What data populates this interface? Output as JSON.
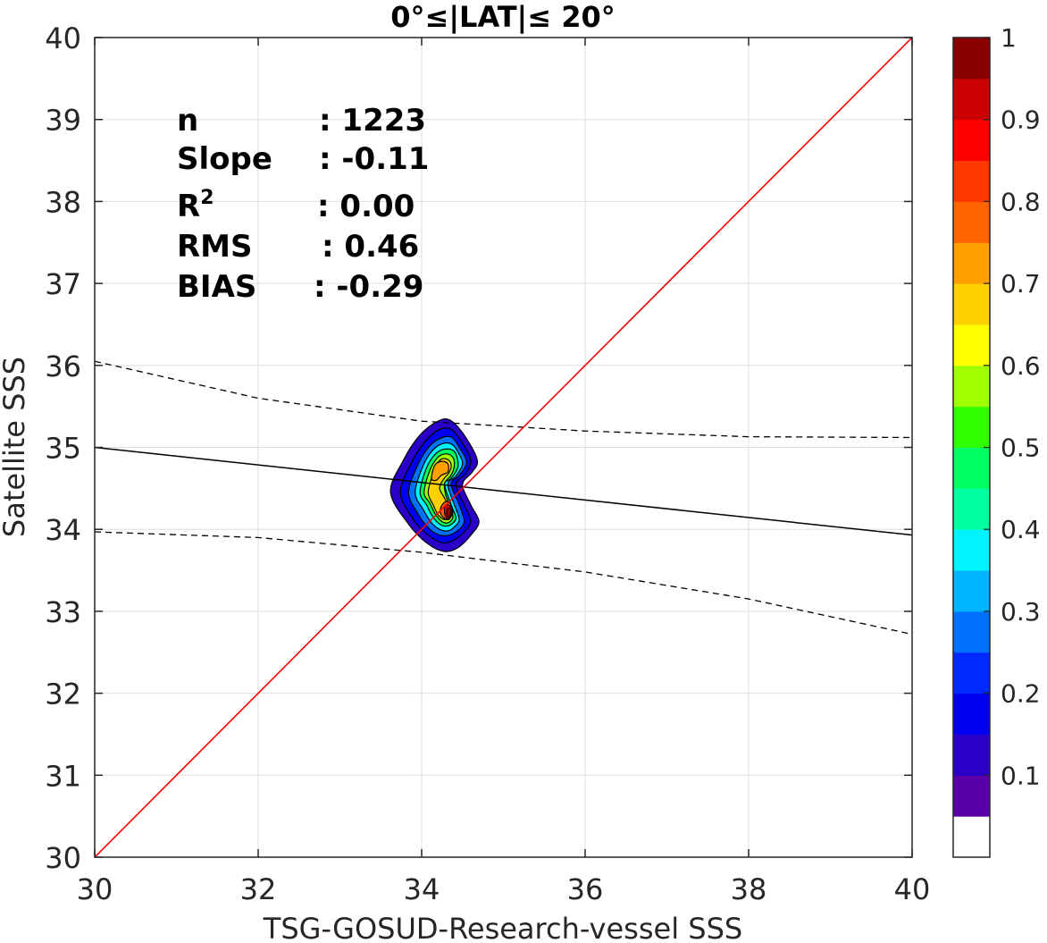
{
  "chart_data": {
    "type": "contour",
    "title": "0°≤|LAT|≤ 20°",
    "xlabel": "TSG-GOSUD-Research-vessel SSS",
    "ylabel": "Satellite SSS",
    "xlim": [
      30,
      40
    ],
    "ylim": [
      30,
      40
    ],
    "xticks": [
      "30",
      "32",
      "34",
      "36",
      "38",
      "40"
    ],
    "yticks": [
      "30",
      "31",
      "32",
      "33",
      "34",
      "35",
      "36",
      "37",
      "38",
      "39",
      "40"
    ],
    "grid": true,
    "stats": [
      {
        "label": "n",
        "label_sup": "",
        "value": ": 1223"
      },
      {
        "label": "Slope",
        "label_sup": "",
        "value": ": -0.11"
      },
      {
        "label": "R",
        "label_sup": "2",
        "value": ": 0.00"
      },
      {
        "label": "RMS",
        "label_sup": "",
        "value": ": 0.46"
      },
      {
        "label": "BIAS",
        "label_sup": "",
        "value": ": -0.29"
      }
    ],
    "identity_line": {
      "x": [
        30,
        40
      ],
      "y": [
        30,
        40
      ],
      "color": "#ff0000"
    },
    "regression_line": {
      "x": [
        30,
        40
      ],
      "y": [
        35.0,
        33.93
      ],
      "color": "#000000"
    },
    "confidence_upper": {
      "x": [
        30,
        32,
        34,
        36,
        38,
        40
      ],
      "y": [
        36.05,
        35.6,
        35.32,
        35.2,
        35.13,
        35.12
      ]
    },
    "confidence_lower": {
      "x": [
        30,
        32,
        34,
        36,
        38,
        40
      ],
      "y": [
        33.97,
        33.9,
        33.72,
        33.48,
        33.15,
        32.72
      ]
    },
    "density_peak": {
      "x": 34.35,
      "y": 34.22
    },
    "colorbar": {
      "ticks": [
        "0.1",
        "0.2",
        "0.3",
        "0.4",
        "0.5",
        "0.6",
        "0.7",
        "0.8",
        "0.9",
        "1"
      ],
      "colors": [
        "#ffffff",
        "#5a00a8",
        "#2a00c8",
        "#0000f0",
        "#0028ff",
        "#0070ff",
        "#00b4ff",
        "#00f4ff",
        "#00ffa0",
        "#00ff60",
        "#30ff00",
        "#a0ff00",
        "#ffff00",
        "#ffd000",
        "#ffa000",
        "#ff6400",
        "#ff3800",
        "#ff0000",
        "#cc0000",
        "#880000"
      ]
    },
    "contour_levels": [
      {
        "level": 0.05,
        "color": "#2a00c8",
        "points": [
          [
            33.62,
            34.45
          ],
          [
            33.78,
            34.85
          ],
          [
            33.98,
            35.15
          ],
          [
            34.2,
            35.32
          ],
          [
            34.35,
            35.33
          ],
          [
            34.52,
            35.15
          ],
          [
            34.68,
            34.85
          ],
          [
            34.62,
            34.7
          ],
          [
            34.5,
            34.55
          ],
          [
            34.6,
            34.3
          ],
          [
            34.7,
            34.1
          ],
          [
            34.62,
            33.95
          ],
          [
            34.45,
            33.78
          ],
          [
            34.28,
            33.73
          ],
          [
            34.08,
            33.82
          ],
          [
            33.85,
            34.05
          ]
        ]
      },
      {
        "level": 0.15,
        "color": "#0000f0",
        "points": [
          [
            33.74,
            34.45
          ],
          [
            33.88,
            34.82
          ],
          [
            34.05,
            35.08
          ],
          [
            34.22,
            35.22
          ],
          [
            34.36,
            35.22
          ],
          [
            34.48,
            35.08
          ],
          [
            34.6,
            34.85
          ],
          [
            34.54,
            34.68
          ],
          [
            34.42,
            34.55
          ],
          [
            34.52,
            34.3
          ],
          [
            34.6,
            34.1
          ],
          [
            34.52,
            33.97
          ],
          [
            34.38,
            33.86
          ],
          [
            34.24,
            33.84
          ],
          [
            34.08,
            33.93
          ],
          [
            33.9,
            34.12
          ]
        ]
      },
      {
        "level": 0.25,
        "color": "#0070ff",
        "points": [
          [
            33.84,
            34.45
          ],
          [
            33.96,
            34.8
          ],
          [
            34.1,
            35.02
          ],
          [
            34.25,
            35.12
          ],
          [
            34.37,
            35.12
          ],
          [
            34.46,
            35.0
          ],
          [
            34.55,
            34.82
          ],
          [
            34.46,
            34.66
          ],
          [
            34.36,
            34.55
          ],
          [
            34.46,
            34.3
          ],
          [
            34.52,
            34.1
          ],
          [
            34.46,
            34.0
          ],
          [
            34.34,
            33.93
          ],
          [
            34.22,
            33.93
          ],
          [
            34.1,
            34.0
          ],
          [
            33.96,
            34.18
          ]
        ]
      },
      {
        "level": 0.35,
        "color": "#00f4ff",
        "points": [
          [
            33.92,
            34.45
          ],
          [
            34.02,
            34.78
          ],
          [
            34.14,
            34.97
          ],
          [
            34.27,
            35.05
          ],
          [
            34.38,
            35.03
          ],
          [
            34.45,
            34.93
          ],
          [
            34.5,
            34.8
          ],
          [
            34.42,
            34.65
          ],
          [
            34.32,
            34.55
          ],
          [
            34.4,
            34.3
          ],
          [
            34.46,
            34.12
          ],
          [
            34.4,
            34.03
          ],
          [
            34.32,
            33.98
          ],
          [
            34.22,
            34.0
          ],
          [
            34.12,
            34.08
          ],
          [
            34.02,
            34.24
          ]
        ]
      },
      {
        "level": 0.45,
        "color": "#00ff60",
        "points": [
          [
            33.98,
            34.45
          ],
          [
            34.06,
            34.75
          ],
          [
            34.18,
            34.93
          ],
          [
            34.3,
            34.98
          ],
          [
            34.4,
            34.95
          ],
          [
            34.44,
            34.85
          ],
          [
            34.44,
            34.75
          ],
          [
            34.36,
            34.62
          ],
          [
            34.28,
            34.55
          ],
          [
            34.36,
            34.3
          ],
          [
            34.42,
            34.14
          ],
          [
            34.36,
            34.06
          ],
          [
            34.28,
            34.04
          ],
          [
            34.2,
            34.08
          ],
          [
            34.12,
            34.18
          ],
          [
            34.06,
            34.3
          ]
        ]
      },
      {
        "level": 0.55,
        "color": "#a0ff00",
        "points": [
          [
            34.03,
            34.45
          ],
          [
            34.1,
            34.72
          ],
          [
            34.2,
            34.88
          ],
          [
            34.3,
            34.92
          ],
          [
            34.38,
            34.88
          ],
          [
            34.4,
            34.78
          ],
          [
            34.36,
            34.66
          ],
          [
            34.28,
            34.56
          ],
          [
            34.3,
            34.4
          ],
          [
            34.36,
            34.26
          ],
          [
            34.38,
            34.14
          ],
          [
            34.32,
            34.08
          ],
          [
            34.24,
            34.1
          ],
          [
            34.16,
            34.2
          ],
          [
            34.1,
            34.32
          ]
        ]
      },
      {
        "level": 0.65,
        "color": "#ffd000",
        "points": [
          [
            34.08,
            34.45
          ],
          [
            34.14,
            34.68
          ],
          [
            34.22,
            34.84
          ],
          [
            34.3,
            34.86
          ],
          [
            34.36,
            34.8
          ],
          [
            34.34,
            34.7
          ],
          [
            34.26,
            34.6
          ],
          [
            34.22,
            34.5
          ],
          [
            34.28,
            34.38
          ],
          [
            34.34,
            34.26
          ],
          [
            34.34,
            34.16
          ],
          [
            34.28,
            34.12
          ],
          [
            34.2,
            34.18
          ],
          [
            34.14,
            34.3
          ]
        ]
      },
      {
        "level": 0.75,
        "color": "#ffa000",
        "points": [
          [
            34.12,
            34.62
          ],
          [
            34.16,
            34.78
          ],
          [
            34.24,
            34.83
          ],
          [
            34.32,
            34.8
          ],
          [
            34.32,
            34.7
          ],
          [
            34.24,
            34.66
          ],
          [
            34.18,
            34.6
          ]
        ]
      },
      {
        "level": 0.75,
        "color": "#ff6400",
        "points": [
          [
            34.24,
            34.28
          ],
          [
            34.3,
            34.34
          ],
          [
            34.36,
            34.3
          ],
          [
            34.38,
            34.2
          ],
          [
            34.33,
            34.12
          ],
          [
            34.27,
            34.14
          ],
          [
            34.23,
            34.2
          ]
        ]
      },
      {
        "level": 0.85,
        "color": "#ff0000",
        "points": [
          [
            34.28,
            34.26
          ],
          [
            34.32,
            34.3
          ],
          [
            34.37,
            34.26
          ],
          [
            34.37,
            34.18
          ],
          [
            34.33,
            34.13
          ],
          [
            34.29,
            34.16
          ]
        ]
      },
      {
        "level": 0.95,
        "color": "#880000",
        "points": [
          [
            34.31,
            34.25
          ],
          [
            34.35,
            34.26
          ],
          [
            34.36,
            34.2
          ],
          [
            34.34,
            34.15
          ],
          [
            34.31,
            34.17
          ]
        ]
      }
    ]
  }
}
